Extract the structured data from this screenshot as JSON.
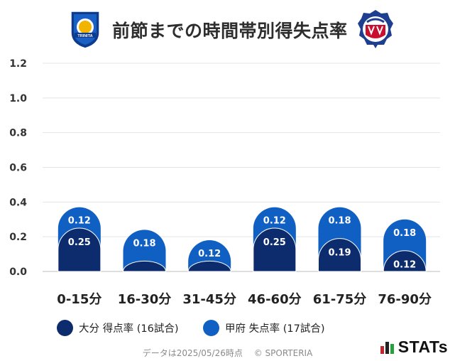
{
  "header": {
    "title": "前節までの時間帯別得失点率"
  },
  "chart_data": {
    "type": "bar",
    "title": "前節までの時間帯別得失点率",
    "categories": [
      "0-15分",
      "16-30分",
      "31-45分",
      "46-60分",
      "61-75分",
      "76-90分"
    ],
    "series": [
      {
        "name": "大分 得点率 (16試合)",
        "values": [
          0.25,
          0.06,
          0.06,
          0.25,
          0.19,
          0.12
        ],
        "labels": [
          "0.25",
          "",
          "",
          "0.25",
          "0.19",
          "0.12"
        ],
        "color": "#0d2c6e"
      },
      {
        "name": "甲府 失点率 (17試合)",
        "values": [
          0.12,
          0.18,
          0.12,
          0.12,
          0.18,
          0.18
        ],
        "labels": [
          "0.12",
          "0.18",
          "0.12",
          "0.12",
          "0.18",
          "0.18"
        ],
        "color": "#1060c4"
      }
    ],
    "yticks": [
      "0.0",
      "0.2",
      "0.4",
      "0.6",
      "0.8",
      "1.0",
      "1.2"
    ],
    "ylim": [
      0,
      1.2
    ],
    "grid": true,
    "xlabel": "",
    "ylabel": ""
  },
  "legend": {
    "items": [
      {
        "label": "大分 得点率 (16試合)",
        "color": "#0d2c6e"
      },
      {
        "label": "甲府 失点率 (17試合)",
        "color": "#1060c4"
      }
    ]
  },
  "footer": {
    "date_text": "データは2025/05/26時点",
    "copyright": "© SPORTERIA"
  },
  "brand": {
    "name": "STATs",
    "accent_colors": [
      "#c0282e",
      "#26a13b"
    ]
  },
  "logos": {
    "left_badge_text": "TRINITA",
    "right_badge_text": "VENTFORET KOFU"
  }
}
